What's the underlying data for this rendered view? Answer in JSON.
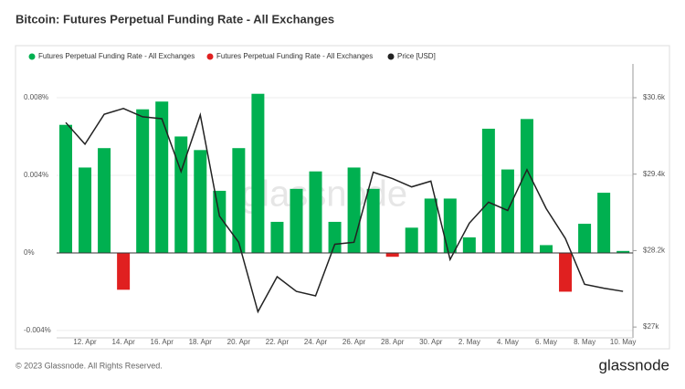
{
  "chart_data": {
    "type": "bar",
    "title": "Bitcoin: Futures Perpetual Funding Rate - All Exchanges",
    "watermark": "glassnode",
    "footer": "© 2023 Glassnode. All Rights Reserved.",
    "logo": "glassnode",
    "categories": [
      null,
      "12. Apr",
      null,
      "14. Apr",
      null,
      "16. Apr",
      null,
      "18. Apr",
      null,
      "20. Apr",
      null,
      "22. Apr",
      null,
      "24. Apr",
      null,
      "26. Apr",
      null,
      "28. Apr",
      null,
      "30. Apr",
      null,
      "2. May",
      null,
      "4. May",
      null,
      "6. May",
      null,
      "8. May",
      null,
      "10. May"
    ],
    "series": [
      {
        "name": "Futures Perpetual Funding Rate - All Exchanges",
        "color": "#00b050",
        "values": [
          0.0066,
          0.0044,
          0.0054,
          null,
          0.0074,
          0.0078,
          0.006,
          0.0053,
          0.0032,
          0.0054,
          0.0082,
          0.0016,
          0.0033,
          0.0042,
          0.0016,
          0.0044,
          0.0033,
          null,
          0.0013,
          0.0028,
          0.0028,
          0.0008,
          0.0064,
          0.0043,
          0.0069,
          0.0004,
          null,
          0.0015,
          0.0031,
          0.0001
        ]
      },
      {
        "name": "Futures Perpetual Funding Rate - All Exchanges",
        "color": "#e02020",
        "values": [
          null,
          null,
          null,
          -0.0019,
          null,
          null,
          null,
          null,
          null,
          null,
          null,
          null,
          null,
          null,
          null,
          null,
          null,
          -0.0002,
          null,
          null,
          null,
          null,
          null,
          null,
          null,
          null,
          -0.002,
          null,
          null,
          null
        ]
      },
      {
        "name": "Price [USD]",
        "color": "#222222",
        "axis": "y2",
        "type": "line",
        "values": [
          30210,
          29870,
          30340,
          30430,
          30300,
          30270,
          29440,
          30330,
          28740,
          28330,
          27240,
          27790,
          27560,
          27490,
          28300,
          28330,
          29430,
          29330,
          29200,
          29290,
          28060,
          28630,
          28960,
          28830,
          29470,
          28860,
          28390,
          27670,
          27610,
          27560
        ]
      }
    ],
    "ylim": [
      -0.00438,
      0.00974
    ],
    "yticks": [
      {
        "value": -0.004,
        "label": "-0.004%"
      },
      {
        "value": 0,
        "label": "0%"
      },
      {
        "value": 0.004,
        "label": "0.004%"
      },
      {
        "value": 0.008,
        "label": "0.008%"
      }
    ],
    "y2lim": [
      26830,
      31130
    ],
    "y2ticks": [
      {
        "value": 27000,
        "label": "$27k"
      },
      {
        "value": 28200,
        "label": "$28.2k"
      },
      {
        "value": 29400,
        "label": "$29.4k"
      },
      {
        "value": 30600,
        "label": "$30.6k"
      }
    ],
    "grid": true
  }
}
